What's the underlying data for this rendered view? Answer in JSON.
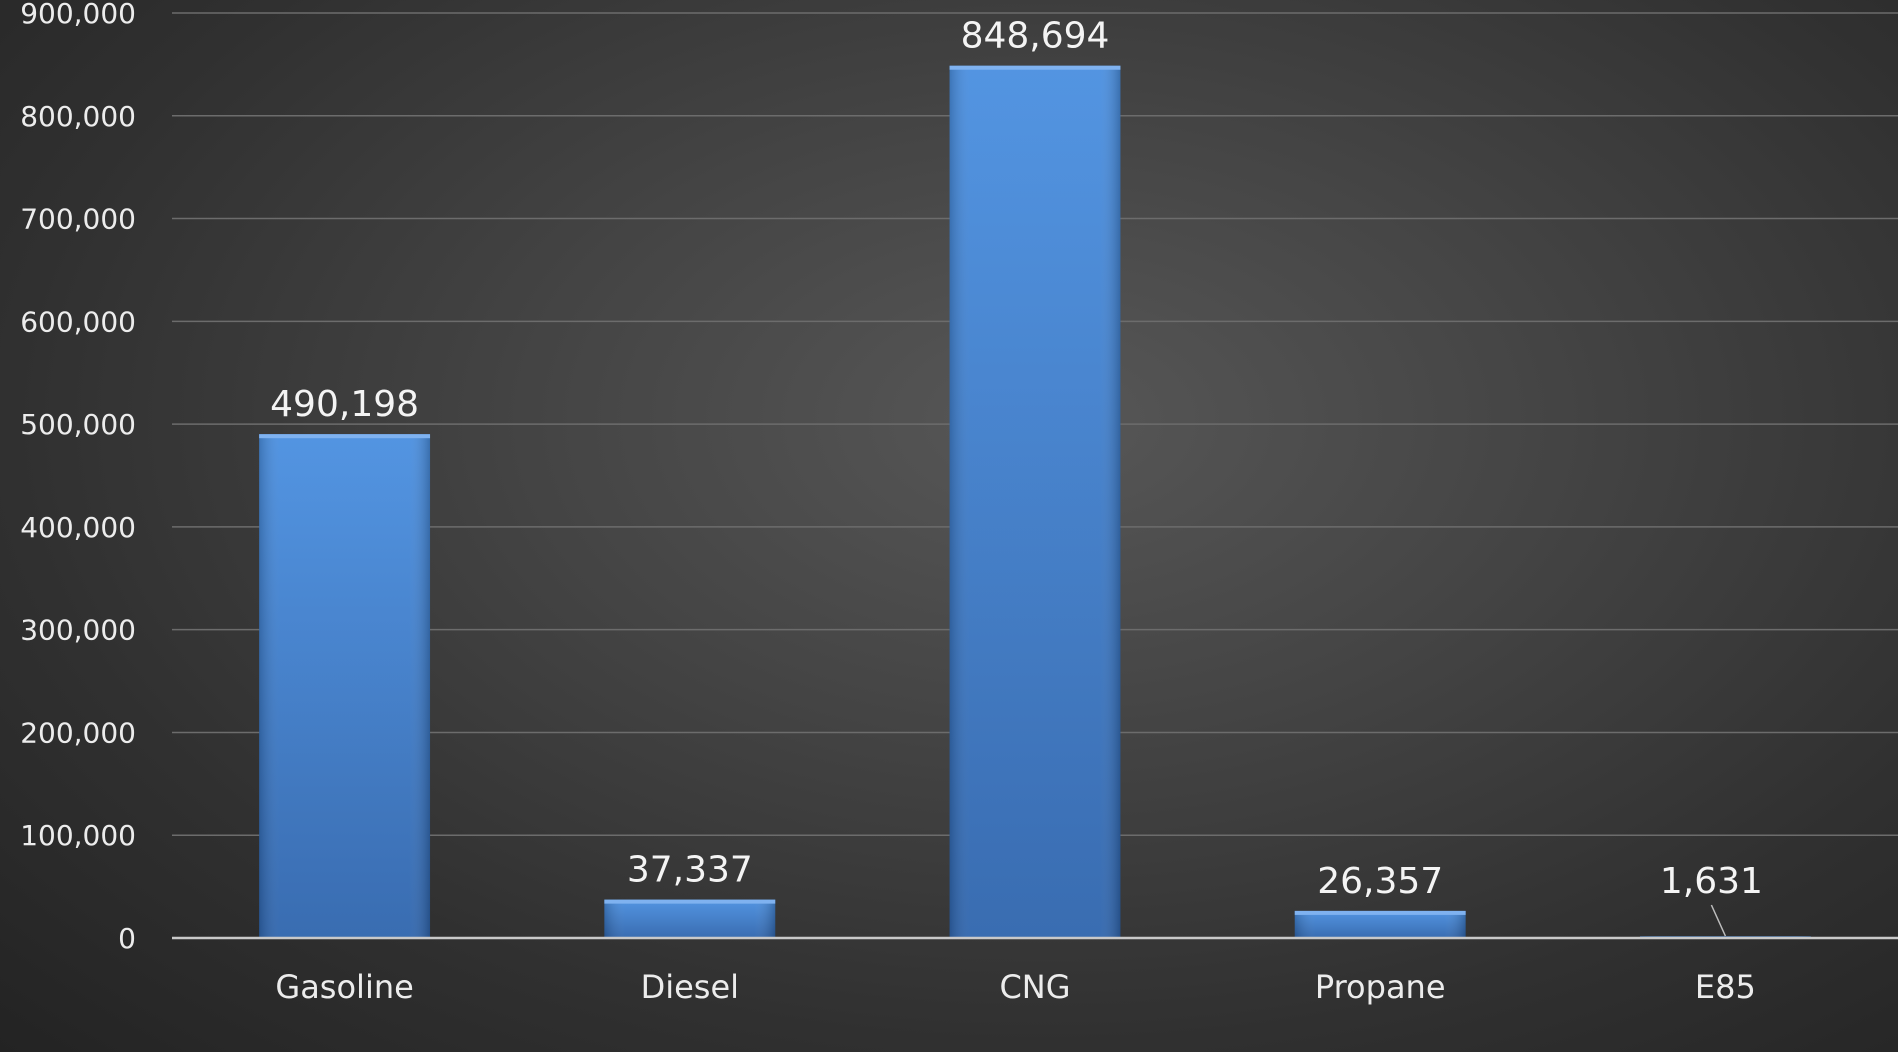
{
  "chart_data": {
    "type": "bar",
    "title": "",
    "xlabel": "",
    "ylabel": "",
    "categories": [
      "Gasoline",
      "Diesel",
      "CNG",
      "Propane",
      "E85"
    ],
    "values": [
      490198,
      37337,
      848694,
      26357,
      1631
    ],
    "value_labels": [
      "490,198",
      "37,337",
      "848,694",
      "26,357",
      "1,631"
    ],
    "ylim": [
      0,
      900000
    ],
    "y_ticks": [
      0,
      100000,
      200000,
      300000,
      400000,
      500000,
      600000,
      700000,
      800000,
      900000
    ],
    "y_tick_labels": [
      "0",
      "100,000",
      "200,000",
      "300,000",
      "400,000",
      "500,000",
      "600,000",
      "700,000",
      "800,000",
      "900,000"
    ],
    "grid": true,
    "legend": "none",
    "colors": {
      "bar_top": "#4a8fe0",
      "bar_bottom": "#2f65ad",
      "text": "#ececec",
      "grid": "#6c6c6c",
      "axis": "#c9c9c9"
    }
  }
}
